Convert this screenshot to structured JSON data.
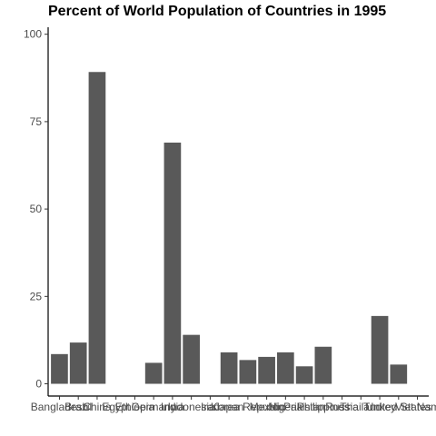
{
  "chart_data": {
    "type": "bar",
    "title": "Percent of World Population of Countries in 1995",
    "xlabel": "",
    "ylabel": "",
    "categories": [
      "Bangladesh",
      "Brazil",
      "China",
      "Egypt",
      "Ethiopia",
      "Germany",
      "India",
      "Indonesia",
      "Iran",
      "Japan",
      "Korea Republic",
      "Mexico",
      "Nigeria",
      "Pakistan",
      "Philippines",
      "Russia",
      "Thailand",
      "Turkey",
      "United States",
      "Viet Nam"
    ],
    "values": [
      8.5,
      11.8,
      89.2,
      0,
      0,
      6.0,
      69.0,
      14.0,
      0,
      9.0,
      6.8,
      7.7,
      9.0,
      5.0,
      10.6,
      0,
      0,
      19.4,
      5.5,
      0
    ],
    "ylim": [
      -3.5,
      102
    ],
    "yticks": [
      0,
      25,
      50,
      75,
      100
    ],
    "grid": false,
    "legend": "none",
    "bar_color": "#595959"
  }
}
